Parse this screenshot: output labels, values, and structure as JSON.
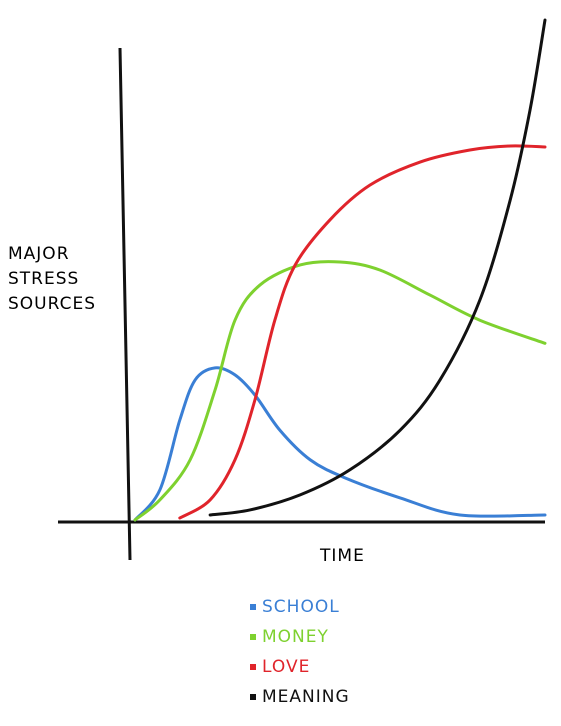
{
  "chart_data": {
    "type": "line",
    "ylabel": [
      "MAJOR",
      "STRESS",
      "SOURCES"
    ],
    "xlabel": "TIME",
    "xlim": [
      0,
      100
    ],
    "ylim": [
      0,
      100
    ],
    "series": [
      {
        "name": "SCHOOL",
        "color": "#3a7fd5",
        "x": [
          1.2,
          7.2,
          12,
          15.7,
          20.5,
          25.3,
          30.1,
          36.1,
          43.4,
          51.8,
          65.1,
          79.5,
          100
        ],
        "values": [
          0.4,
          6.4,
          20.3,
          28.3,
          30.7,
          29.3,
          25.3,
          18.3,
          12.4,
          8.8,
          4.8,
          1.4,
          1.4
        ]
      },
      {
        "name": "MONEY",
        "color": "#7ed12f",
        "x": [
          1.2,
          7.2,
          14.5,
          20.5,
          25.3,
          31.3,
          41,
          50.6,
          60.2,
          72.3,
          84.3,
          100
        ],
        "values": [
          0.4,
          4.4,
          12.4,
          26.3,
          40.2,
          47.2,
          51.2,
          51.8,
          50.2,
          45.2,
          40.2,
          35.6
        ]
      },
      {
        "name": "LOVE",
        "color": "#e0242b",
        "x": [
          12,
          19.3,
          25.3,
          30.1,
          34.9,
          39.8,
          48.2,
          57.8,
          69.9,
          81.9,
          91.6,
          100
        ],
        "values": [
          0.8,
          4.4,
          12.4,
          24.3,
          40.2,
          51.2,
          60.2,
          67.1,
          71.7,
          74.1,
          74.9,
          74.7
        ]
      },
      {
        "name": "MEANING",
        "color": "#111111",
        "x": [
          19.3,
          28.9,
          41,
          53,
          65.1,
          74.7,
          84.3,
          91.6,
          96.4,
          100
        ],
        "values": [
          1.4,
          2.4,
          5.4,
          10.4,
          18.3,
          28.3,
          44.2,
          64.1,
          82.1,
          100
        ]
      }
    ]
  }
}
